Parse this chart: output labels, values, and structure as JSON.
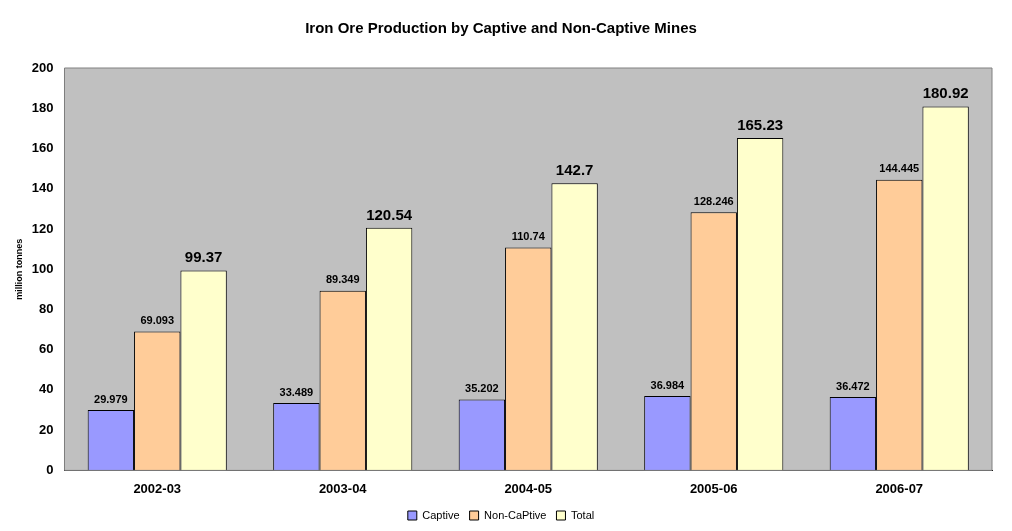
{
  "chart_data": {
    "type": "bar",
    "title": "Iron Ore Production by Captive and Non-Captive Mines",
    "ylabel": "million tonnes",
    "categories": [
      "2002-03",
      "2003-04",
      "2004-05",
      "2005-06",
      "2006-07"
    ],
    "series": [
      {
        "name": "Captive",
        "color": "#9999ff",
        "values": [
          29.979,
          33.489,
          35.202,
          36.984,
          36.472
        ]
      },
      {
        "name": "Non-CaPtive",
        "color": "#ffcc99",
        "values": [
          69.093,
          89.349,
          110.74,
          128.246,
          144.445
        ]
      },
      {
        "name": "Total",
        "color": "#ffffcc",
        "values": [
          99.37,
          120.54,
          142.7,
          165.23,
          180.92
        ]
      }
    ],
    "ylim": [
      0,
      200
    ],
    "yticks": [
      0,
      20,
      40,
      60,
      80,
      100,
      120,
      140,
      160,
      180,
      200
    ],
    "grid": false,
    "legend": "bottom",
    "data_labels": true
  }
}
